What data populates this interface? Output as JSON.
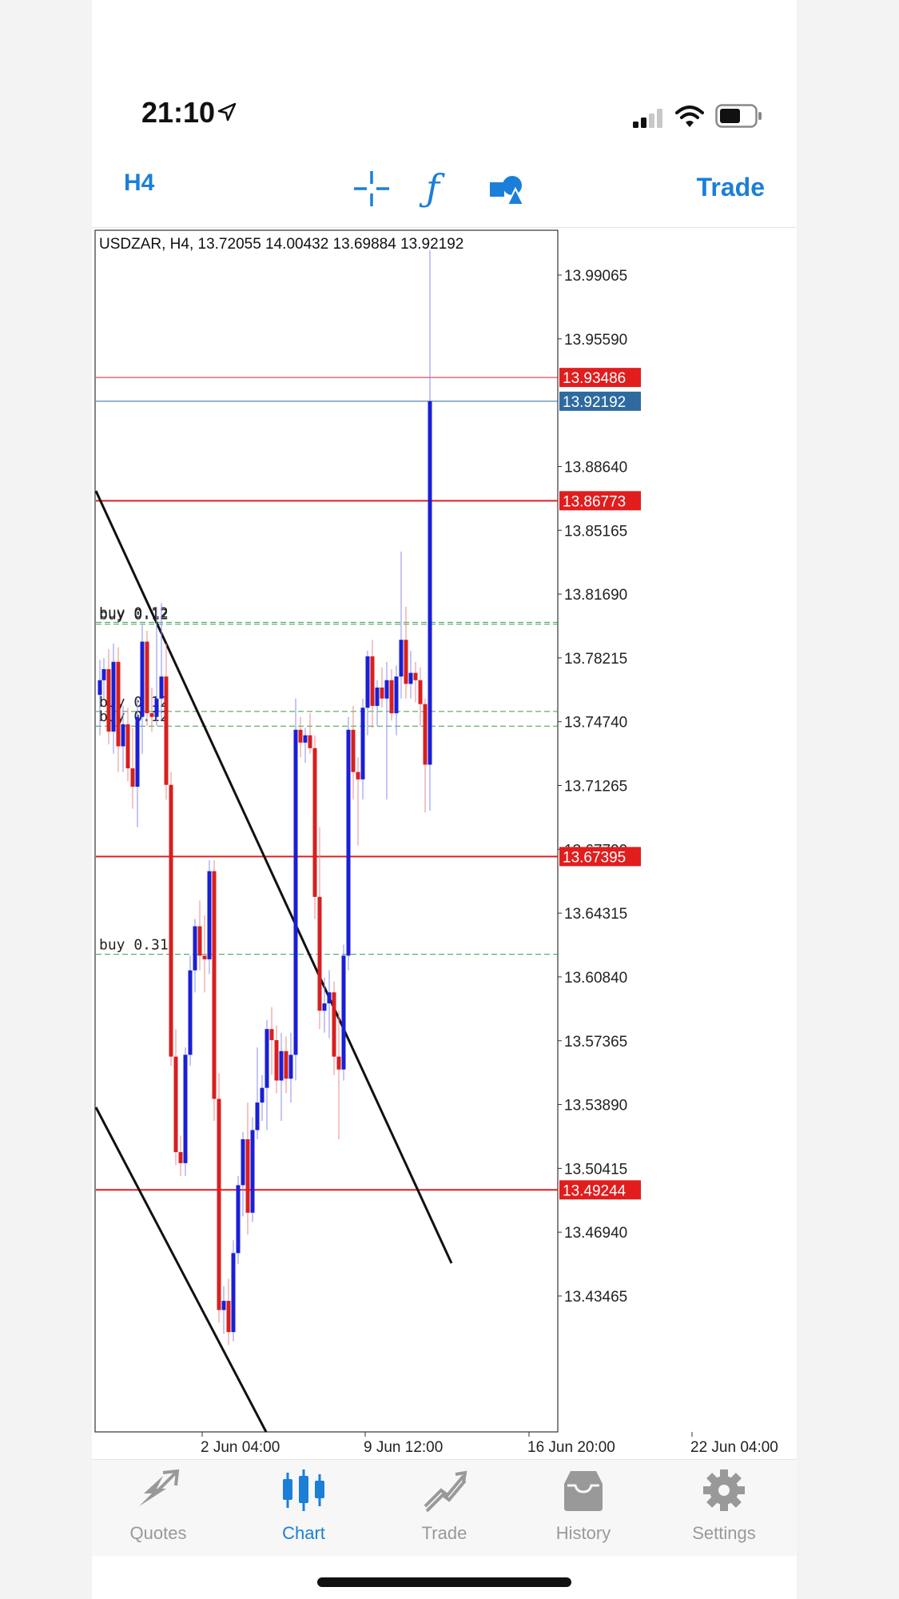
{
  "status_bar": {
    "time": "21:10"
  },
  "toolbar": {
    "timeframe": "H4",
    "trade": "Trade"
  },
  "chart": {
    "symbol_info": "USDZAR, H4, 13.72055 14.00432 13.69884 13.92192",
    "price_range": [
      13.4,
      14.0
    ],
    "y_labels": [
      "13.99065",
      "13.95590",
      "13.88640",
      "13.85165",
      "13.81690",
      "13.78215",
      "13.74740",
      "13.71265",
      "13.67790",
      "13.64315",
      "13.60840",
      "13.57365",
      "13.53890",
      "13.50415",
      "13.46940",
      "13.43465"
    ],
    "x_labels": [
      "2 Jun 04:00",
      "9 Jun 12:00",
      "16 Jun 20:00",
      "22 Jun 04:00"
    ],
    "h_lines": [
      {
        "price": "13.93486",
        "color": "#e11d1d",
        "thin": true
      },
      {
        "price": "13.92192",
        "color": "#2e6aa0",
        "thin": true
      },
      {
        "price": "13.86773",
        "color": "#e11d1d"
      },
      {
        "price": "13.67395",
        "color": "#e11d1d"
      },
      {
        "price": "13.49244",
        "color": "#e11d1d"
      }
    ],
    "order_labels": [
      {
        "text": "buy 0.12",
        "price": 13.8015
      },
      {
        "text": "buy 0.12",
        "price": 13.8005
      },
      {
        "text": "buy 0.12",
        "price": 13.753
      },
      {
        "text": "buy 0.12",
        "price": 13.745
      },
      {
        "text": "buy 0.31",
        "price": 13.6207
      }
    ],
    "colors": {
      "bull": "#1a1fd6",
      "bear": "#d81f1f",
      "accent": "#1b7fd8"
    }
  },
  "nav": {
    "items": [
      {
        "label": "Quotes",
        "icon": "quotes-icon"
      },
      {
        "label": "Chart",
        "icon": "chart-icon",
        "active": true
      },
      {
        "label": "Trade",
        "icon": "trade-icon"
      },
      {
        "label": "History",
        "icon": "history-icon"
      },
      {
        "label": "Settings",
        "icon": "settings-icon"
      }
    ]
  }
}
